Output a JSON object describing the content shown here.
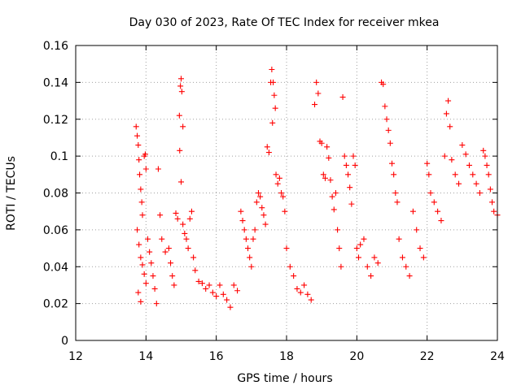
{
  "chart_data": {
    "type": "scatter",
    "title": "Day 030 of 2023, Rate Of TEC Index for receiver mkea",
    "xlabel": "GPS time / hours",
    "ylabel": "ROTI / TECUs",
    "xlim": [
      12,
      24
    ],
    "ylim": [
      0,
      0.16
    ],
    "x_ticks": [
      12,
      14,
      16,
      18,
      20,
      22,
      24
    ],
    "x_tick_labels": [
      "12",
      "14",
      "16",
      "18",
      "20",
      "22",
      "24"
    ],
    "y_ticks": [
      0,
      0.02,
      0.04,
      0.06,
      0.08,
      0.1,
      0.12,
      0.14,
      0.16
    ],
    "y_tick_labels": [
      "0",
      "0.02",
      "0.04",
      "0.06",
      "0.08",
      "0.1",
      "0.12",
      "0.14",
      "0.16"
    ],
    "grid": true,
    "legend": "none",
    "marker": "plus",
    "color": "#ff0000",
    "series": [
      {
        "values": [
          [
            13.72,
            0.116
          ],
          [
            13.75,
            0.111
          ],
          [
            13.78,
            0.106
          ],
          [
            13.8,
            0.098
          ],
          [
            13.82,
            0.09
          ],
          [
            13.85,
            0.082
          ],
          [
            13.88,
            0.075
          ],
          [
            13.9,
            0.068
          ],
          [
            13.75,
            0.06
          ],
          [
            13.8,
            0.052
          ],
          [
            13.85,
            0.045
          ],
          [
            13.9,
            0.041
          ],
          [
            13.95,
            0.036
          ],
          [
            14.0,
            0.031
          ],
          [
            13.78,
            0.026
          ],
          [
            13.85,
            0.021
          ],
          [
            13.95,
            0.1
          ],
          [
            14.0,
            0.093
          ],
          [
            13.98,
            0.101
          ],
          [
            14.05,
            0.055
          ],
          [
            14.1,
            0.048
          ],
          [
            14.15,
            0.042
          ],
          [
            14.2,
            0.035
          ],
          [
            14.25,
            0.028
          ],
          [
            14.3,
            0.02
          ],
          [
            14.35,
            0.093
          ],
          [
            14.4,
            0.068
          ],
          [
            14.45,
            0.055
          ],
          [
            14.55,
            0.048
          ],
          [
            14.65,
            0.05
          ],
          [
            14.7,
            0.042
          ],
          [
            14.75,
            0.035
          ],
          [
            14.8,
            0.03
          ],
          [
            14.85,
            0.069
          ],
          [
            14.9,
            0.066
          ],
          [
            14.95,
            0.122
          ],
          [
            14.98,
            0.138
          ],
          [
            15.0,
            0.142
          ],
          [
            15.02,
            0.135
          ],
          [
            15.05,
            0.116
          ],
          [
            14.96,
            0.103
          ],
          [
            15.0,
            0.086
          ],
          [
            15.05,
            0.063
          ],
          [
            15.1,
            0.058
          ],
          [
            15.15,
            0.055
          ],
          [
            15.2,
            0.05
          ],
          [
            15.25,
            0.066
          ],
          [
            15.3,
            0.07
          ],
          [
            15.35,
            0.045
          ],
          [
            15.4,
            0.038
          ],
          [
            15.5,
            0.032
          ],
          [
            15.6,
            0.031
          ],
          [
            15.7,
            0.028
          ],
          [
            15.8,
            0.03
          ],
          [
            15.9,
            0.026
          ],
          [
            16.0,
            0.024
          ],
          [
            16.1,
            0.03
          ],
          [
            16.2,
            0.025
          ],
          [
            16.3,
            0.022
          ],
          [
            16.4,
            0.018
          ],
          [
            16.5,
            0.03
          ],
          [
            16.6,
            0.027
          ],
          [
            16.7,
            0.07
          ],
          [
            16.75,
            0.065
          ],
          [
            16.8,
            0.06
          ],
          [
            16.85,
            0.055
          ],
          [
            16.9,
            0.05
          ],
          [
            16.95,
            0.045
          ],
          [
            17.0,
            0.04
          ],
          [
            17.05,
            0.055
          ],
          [
            17.1,
            0.06
          ],
          [
            17.15,
            0.075
          ],
          [
            17.2,
            0.08
          ],
          [
            17.25,
            0.078
          ],
          [
            17.3,
            0.072
          ],
          [
            17.35,
            0.068
          ],
          [
            17.4,
            0.063
          ],
          [
            17.45,
            0.105
          ],
          [
            17.5,
            0.102
          ],
          [
            17.55,
            0.14
          ],
          [
            17.58,
            0.147
          ],
          [
            17.62,
            0.14
          ],
          [
            17.65,
            0.133
          ],
          [
            17.68,
            0.126
          ],
          [
            17.6,
            0.118
          ],
          [
            17.7,
            0.09
          ],
          [
            17.75,
            0.085
          ],
          [
            17.8,
            0.088
          ],
          [
            17.85,
            0.08
          ],
          [
            17.9,
            0.078
          ],
          [
            17.95,
            0.07
          ],
          [
            18.0,
            0.05
          ],
          [
            18.1,
            0.04
          ],
          [
            18.2,
            0.035
          ],
          [
            18.3,
            0.028
          ],
          [
            18.4,
            0.026
          ],
          [
            18.5,
            0.03
          ],
          [
            18.6,
            0.025
          ],
          [
            18.7,
            0.022
          ],
          [
            18.8,
            0.128
          ],
          [
            18.85,
            0.14
          ],
          [
            18.9,
            0.134
          ],
          [
            18.95,
            0.108
          ],
          [
            19.0,
            0.107
          ],
          [
            19.05,
            0.09
          ],
          [
            19.1,
            0.088
          ],
          [
            19.15,
            0.105
          ],
          [
            19.2,
            0.099
          ],
          [
            19.25,
            0.087
          ],
          [
            19.3,
            0.078
          ],
          [
            19.35,
            0.071
          ],
          [
            19.4,
            0.08
          ],
          [
            19.45,
            0.06
          ],
          [
            19.5,
            0.05
          ],
          [
            19.55,
            0.04
          ],
          [
            19.6,
            0.132
          ],
          [
            19.65,
            0.1
          ],
          [
            19.7,
            0.095
          ],
          [
            19.75,
            0.09
          ],
          [
            19.8,
            0.083
          ],
          [
            19.85,
            0.074
          ],
          [
            19.9,
            0.1
          ],
          [
            19.95,
            0.095
          ],
          [
            20.0,
            0.05
          ],
          [
            20.05,
            0.045
          ],
          [
            20.1,
            0.052
          ],
          [
            20.2,
            0.055
          ],
          [
            20.3,
            0.04
          ],
          [
            20.4,
            0.035
          ],
          [
            20.5,
            0.045
          ],
          [
            20.6,
            0.042
          ],
          [
            20.7,
            0.14
          ],
          [
            20.75,
            0.139
          ],
          [
            20.8,
            0.127
          ],
          [
            20.85,
            0.12
          ],
          [
            20.9,
            0.114
          ],
          [
            20.95,
            0.107
          ],
          [
            21.0,
            0.096
          ],
          [
            21.05,
            0.09
          ],
          [
            21.1,
            0.08
          ],
          [
            21.15,
            0.075
          ],
          [
            21.2,
            0.055
          ],
          [
            21.3,
            0.045
          ],
          [
            21.4,
            0.04
          ],
          [
            21.5,
            0.035
          ],
          [
            21.6,
            0.07
          ],
          [
            21.7,
            0.06
          ],
          [
            21.8,
            0.05
          ],
          [
            21.9,
            0.045
          ],
          [
            22.0,
            0.096
          ],
          [
            22.05,
            0.09
          ],
          [
            22.1,
            0.08
          ],
          [
            22.2,
            0.075
          ],
          [
            22.3,
            0.07
          ],
          [
            22.4,
            0.065
          ],
          [
            22.5,
            0.1
          ],
          [
            22.55,
            0.123
          ],
          [
            22.6,
            0.13
          ],
          [
            22.65,
            0.116
          ],
          [
            22.7,
            0.098
          ],
          [
            22.8,
            0.09
          ],
          [
            22.9,
            0.085
          ],
          [
            23.0,
            0.106
          ],
          [
            23.1,
            0.101
          ],
          [
            23.2,
            0.095
          ],
          [
            23.3,
            0.09
          ],
          [
            23.4,
            0.085
          ],
          [
            23.5,
            0.08
          ],
          [
            23.6,
            0.103
          ],
          [
            23.65,
            0.1
          ],
          [
            23.7,
            0.095
          ],
          [
            23.75,
            0.09
          ],
          [
            23.8,
            0.082
          ],
          [
            23.85,
            0.075
          ],
          [
            23.9,
            0.07
          ],
          [
            24.0,
            0.068
          ]
        ]
      }
    ]
  }
}
